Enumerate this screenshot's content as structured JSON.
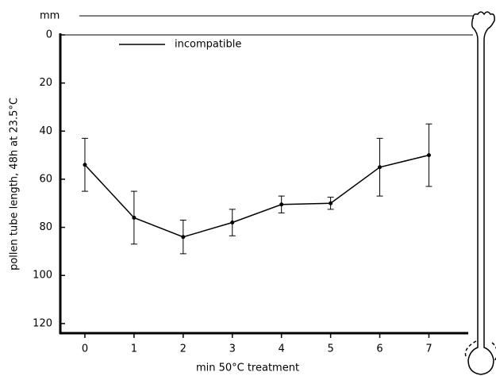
{
  "chart_data": {
    "type": "line",
    "unit_label": "mm",
    "x_label": "min 50°C treatment",
    "y_label": "pollen tube length, 48h at 23.5°C",
    "x": [
      0,
      1,
      2,
      3,
      4,
      5,
      6,
      7
    ],
    "series": [
      {
        "name": "incompatible",
        "color": "#000000",
        "values": [
          54,
          76,
          84,
          78,
          70.5,
          70,
          55,
          50
        ],
        "errors": [
          11,
          11,
          7,
          5.5,
          3.5,
          2.5,
          12,
          13
        ]
      }
    ],
    "xlim": [
      -0.5,
      7.8
    ],
    "xticks": [
      0,
      1,
      2,
      3,
      4,
      5,
      6,
      7
    ],
    "ylim": [
      0,
      124
    ],
    "yticks": [
      0,
      20,
      40,
      60,
      80,
      100,
      120
    ],
    "y_reversed": true,
    "legend": "upper left"
  }
}
